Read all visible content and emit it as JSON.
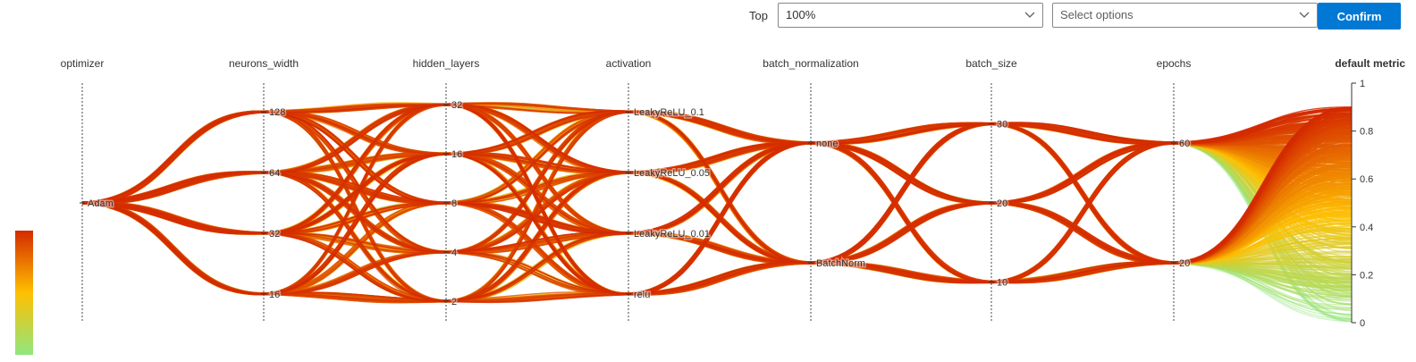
{
  "toolbar": {
    "top_label": "Top",
    "top_value": "100%",
    "options_placeholder": "Select options",
    "confirm_label": "Confirm"
  },
  "colors": {
    "accent": "#0078d4",
    "scale_high": "#d42a00",
    "scale_mid": "#ffc000",
    "scale_low": "#90e680"
  },
  "chart_data": {
    "type": "parallel_coordinates",
    "color_scale": {
      "low": "#90e680",
      "mid": "#ffc000",
      "high": "#d42a00"
    },
    "axes": [
      {
        "name": "optimizer",
        "ticks": [
          "Adam"
        ]
      },
      {
        "name": "neurons_width",
        "ticks": [
          "128",
          "64",
          "32",
          "16"
        ]
      },
      {
        "name": "hidden_layers",
        "ticks": [
          "32",
          "16",
          "8",
          "4",
          "2"
        ]
      },
      {
        "name": "activation",
        "ticks": [
          "LeakyReLU_0.1",
          "LeakyReLU_0.05",
          "LeakyReLU_0.01",
          "relu"
        ]
      },
      {
        "name": "batch_normalization",
        "ticks": [
          "none",
          "BatchNorm"
        ]
      },
      {
        "name": "batch_size",
        "ticks": [
          "30",
          "20",
          "10"
        ]
      },
      {
        "name": "epochs",
        "ticks": [
          "60",
          "20"
        ]
      },
      {
        "name": "default metric",
        "ticks": [
          "1",
          "0.8",
          "0.6",
          "0.4",
          "0.2",
          "0"
        ],
        "range": [
          0,
          1
        ]
      }
    ],
    "metric_range": [
      0.0,
      0.9
    ],
    "lines": 640
  }
}
